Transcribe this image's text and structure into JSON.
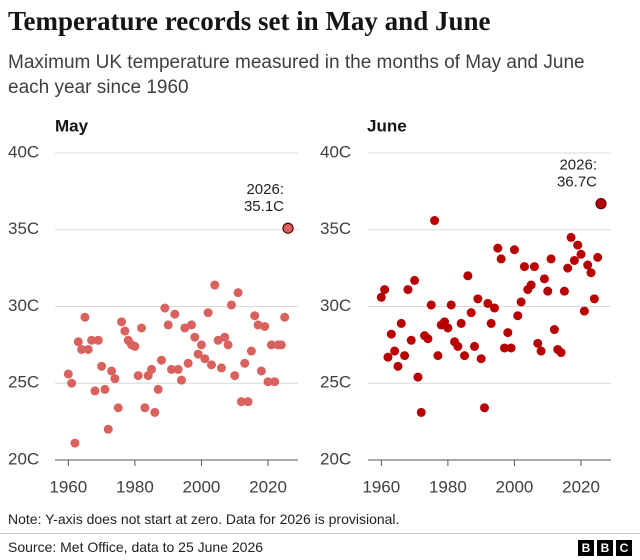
{
  "title": "Temperature records set in May and June",
  "subtitle": "Maximum UK temperature measured in the months of May and June each year since 1960",
  "note": "Note: Y-axis does not start at zero. Data for 2026 is provisional.",
  "source": "Source: Met Office, data to 25 June 2026",
  "logo": [
    "B",
    "B",
    "C"
  ],
  "chart_data": [
    {
      "type": "scatter",
      "title": "May",
      "color": "#d9625e",
      "grid": true,
      "annotation": [
        "2026:",
        "35.1C"
      ],
      "x": [
        1960,
        1961,
        1962,
        1963,
        1964,
        1965,
        1966,
        1967,
        1968,
        1969,
        1970,
        1971,
        1972,
        1973,
        1974,
        1975,
        1976,
        1977,
        1978,
        1979,
        1980,
        1981,
        1982,
        1983,
        1984,
        1985,
        1986,
        1987,
        1988,
        1989,
        1990,
        1991,
        1992,
        1993,
        1994,
        1995,
        1996,
        1997,
        1998,
        1999,
        2000,
        2001,
        2002,
        2003,
        2004,
        2005,
        2006,
        2007,
        2008,
        2009,
        2010,
        2011,
        2012,
        2013,
        2014,
        2015,
        2016,
        2017,
        2018,
        2019,
        2020,
        2021,
        2022,
        2023,
        2024,
        2025,
        2026
      ],
      "values": [
        25.6,
        25.0,
        21.1,
        27.7,
        27.2,
        29.3,
        27.2,
        27.8,
        24.5,
        27.8,
        26.1,
        24.6,
        22.0,
        25.8,
        25.3,
        23.4,
        29.0,
        28.4,
        27.8,
        27.5,
        27.4,
        25.5,
        28.6,
        23.4,
        25.5,
        25.9,
        23.1,
        24.6,
        26.5,
        29.9,
        28.8,
        25.9,
        29.5,
        25.9,
        25.2,
        28.6,
        26.3,
        28.8,
        28.0,
        26.9,
        27.5,
        26.6,
        29.6,
        26.2,
        31.4,
        27.8,
        26.0,
        28.0,
        27.5,
        30.1,
        25.5,
        30.9,
        23.8,
        26.3,
        23.8,
        27.1,
        29.4,
        28.8,
        25.8,
        28.7,
        25.1,
        27.5,
        25.1,
        27.5,
        27.5,
        29.3,
        35.1
      ],
      "xlim": [
        1956,
        2029
      ],
      "xticks": [
        1960,
        1980,
        2000,
        2020
      ],
      "ylim": [
        20,
        40
      ],
      "yticks": [
        {
          "value": 20,
          "label": "20C"
        },
        {
          "value": 25,
          "label": "25C"
        },
        {
          "value": 30,
          "label": "30C"
        },
        {
          "value": 35,
          "label": "35C"
        },
        {
          "value": 40,
          "label": "40C"
        }
      ]
    },
    {
      "type": "scatter",
      "title": "June",
      "color": "#b80000",
      "grid": true,
      "annotation": [
        "2026:",
        "36.7C"
      ],
      "x": [
        1960,
        1961,
        1962,
        1963,
        1964,
        1965,
        1966,
        1967,
        1968,
        1969,
        1970,
        1971,
        1972,
        1973,
        1974,
        1975,
        1976,
        1977,
        1978,
        1979,
        1980,
        1981,
        1982,
        1983,
        1984,
        1985,
        1986,
        1987,
        1988,
        1989,
        1990,
        1991,
        1992,
        1993,
        1994,
        1995,
        1996,
        1997,
        1998,
        1999,
        2000,
        2001,
        2002,
        2003,
        2004,
        2005,
        2006,
        2007,
        2008,
        2009,
        2010,
        2011,
        2012,
        2013,
        2014,
        2015,
        2016,
        2017,
        2018,
        2019,
        2020,
        2021,
        2022,
        2023,
        2024,
        2025,
        2026
      ],
      "values": [
        30.6,
        31.1,
        26.7,
        28.2,
        27.1,
        26.1,
        28.9,
        26.8,
        31.1,
        27.8,
        31.7,
        25.4,
        23.1,
        28.1,
        27.9,
        30.1,
        35.6,
        26.8,
        28.8,
        29.0,
        28.6,
        30.1,
        27.7,
        27.4,
        28.9,
        26.8,
        32.0,
        29.6,
        27.4,
        30.5,
        26.6,
        23.4,
        30.2,
        28.9,
        29.9,
        33.8,
        33.1,
        27.3,
        28.3,
        27.3,
        33.7,
        29.4,
        30.3,
        32.6,
        31.1,
        31.4,
        32.6,
        27.6,
        27.1,
        31.8,
        31.0,
        33.1,
        28.5,
        27.2,
        27.0,
        31.0,
        32.5,
        34.5,
        33.0,
        34.0,
        33.4,
        29.7,
        32.7,
        32.2,
        30.5,
        33.2,
        36.7
      ],
      "xlim": [
        1956,
        2029
      ],
      "xticks": [
        1960,
        1980,
        2000,
        2020
      ],
      "ylim": [
        20,
        40
      ],
      "yticks": [
        {
          "value": 20,
          "label": "20C"
        },
        {
          "value": 25,
          "label": "25C"
        },
        {
          "value": 30,
          "label": "30C"
        },
        {
          "value": 35,
          "label": "35C"
        },
        {
          "value": 40,
          "label": "40C"
        }
      ]
    }
  ]
}
